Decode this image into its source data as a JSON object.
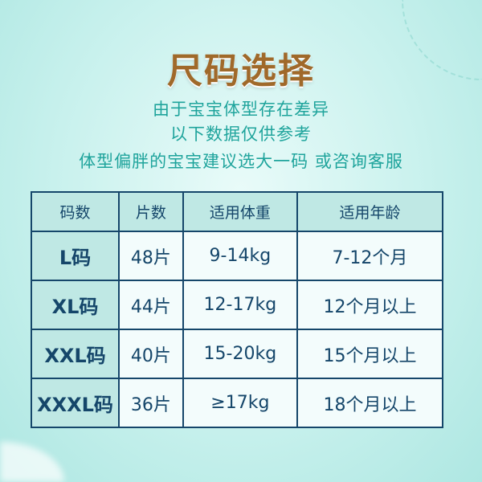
{
  "title": "尺码选择",
  "subtitle": [
    "由于宝宝体型存在差异",
    "以下数据仅供参考",
    "体型偏胖的宝宝建议选大一码  或咨询客服"
  ],
  "colors": {
    "title": "#a0692a",
    "subtitle": "#1fa49c",
    "table_border": "#15466a",
    "header_bg": "#bfe8e4"
  },
  "table": {
    "headers": [
      "码数",
      "片数",
      "适用体重",
      "适用年龄"
    ],
    "rows": [
      [
        "L码",
        "48片",
        "9-14kg",
        "7-12个月"
      ],
      [
        "XL码",
        "44片",
        "12-17kg",
        "12个月以上"
      ],
      [
        "XXL码",
        "40片",
        "15-20kg",
        "15个月以上"
      ],
      [
        "XXXL码",
        "36片",
        "≥17kg",
        "18个月以上"
      ]
    ]
  }
}
